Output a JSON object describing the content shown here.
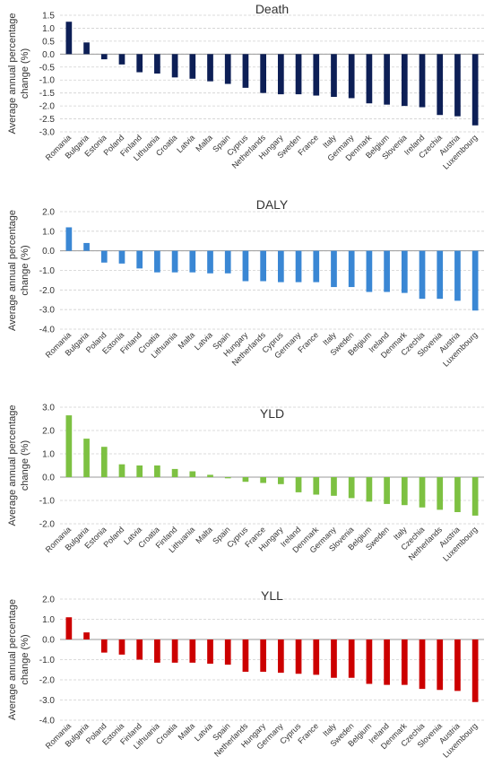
{
  "chart_data": [
    {
      "type": "bar",
      "title": "Death",
      "ylabel_lines": [
        "Average annual percentage",
        "change (%)"
      ],
      "color": "#0d1f56",
      "ylim": [
        -3.0,
        1.5
      ],
      "ticks": [
        "1.5",
        "1.0",
        "0.5",
        "0.0",
        "-0.5",
        "-1.0",
        "-1.5",
        "-2.0",
        "-2.5",
        "-3.0"
      ],
      "categories": [
        "Romania",
        "Bulgaria",
        "Estonia",
        "Poland",
        "Finland",
        "Lithuania",
        "Croatia",
        "Latvia",
        "Malta",
        "Spain",
        "Cyprus",
        "Netherlands",
        "Hungary",
        "Sweden",
        "France",
        "Italy",
        "Germany",
        "Denmark",
        "Belgium",
        "Slovenia",
        "Ireland",
        "Czechia",
        "Austria",
        "Luxembourg"
      ],
      "values": [
        1.25,
        0.45,
        -0.2,
        -0.4,
        -0.7,
        -0.75,
        -0.9,
        -0.95,
        -1.05,
        -1.15,
        -1.3,
        -1.5,
        -1.55,
        -1.55,
        -1.6,
        -1.65,
        -1.7,
        -1.9,
        -1.95,
        -2.0,
        -2.05,
        -2.35,
        -2.4,
        -2.75
      ],
      "grid": true
    },
    {
      "type": "bar",
      "title": "DALY",
      "ylabel_lines": [
        "Average annual percentage",
        "change (%)"
      ],
      "color": "#3a87d4",
      "ylim": [
        -4.0,
        2.0
      ],
      "ticks": [
        "2.0",
        "1.0",
        "0.0",
        "-1.0",
        "-2.0",
        "-3.0",
        "-4.0"
      ],
      "categories": [
        "Romania",
        "Bulgaria",
        "Poland",
        "Estonia",
        "Finland",
        "Croatia",
        "Lithuania",
        "Malta",
        "Latvia",
        "Spain",
        "Hungary",
        "Netherlands",
        "Cyprus",
        "Germany",
        "France",
        "Italy",
        "Sweden",
        "Belgium",
        "Ireland",
        "Denmark",
        "Czechia",
        "Slovenia",
        "Austria",
        "Luxembourg"
      ],
      "values": [
        1.2,
        0.4,
        -0.6,
        -0.65,
        -0.9,
        -1.1,
        -1.1,
        -1.1,
        -1.15,
        -1.15,
        -1.55,
        -1.55,
        -1.6,
        -1.6,
        -1.6,
        -1.85,
        -1.85,
        -2.1,
        -2.1,
        -2.15,
        -2.45,
        -2.45,
        -2.55,
        -3.05
      ],
      "grid": true
    },
    {
      "type": "bar",
      "title": "YLD",
      "ylabel_lines": [
        "Average annual percentage",
        "change (%)"
      ],
      "color": "#7dc142",
      "ylim": [
        -2.0,
        3.0
      ],
      "ticks": [
        "3.0",
        "2.0",
        "1.0",
        "0.0",
        "-1.0",
        "-2.0"
      ],
      "categories": [
        "Romania",
        "Bulgaria",
        "Estonia",
        "Poland",
        "Latvia",
        "Croatia",
        "Finland",
        "Lithuania",
        "Malta",
        "Spain",
        "Cyprus",
        "France",
        "Hungary",
        "Ireland",
        "Denmark",
        "Germany",
        "Slovenia",
        "Belgium",
        "Sweden",
        "Italy",
        "Czechia",
        "Netherlands",
        "Austria",
        "Luxembourg"
      ],
      "values": [
        2.65,
        1.65,
        1.3,
        0.55,
        0.5,
        0.5,
        0.35,
        0.25,
        0.1,
        -0.05,
        -0.2,
        -0.25,
        -0.3,
        -0.65,
        -0.75,
        -0.8,
        -0.9,
        -1.05,
        -1.15,
        -1.2,
        -1.3,
        -1.4,
        -1.5,
        -1.65
      ],
      "grid": true
    },
    {
      "type": "bar",
      "title": "YLL",
      "ylabel_lines": [
        "Average annual percentage",
        "change (%)"
      ],
      "color": "#cc0000",
      "ylim": [
        -4.0,
        2.0
      ],
      "ticks": [
        "2.0",
        "1.0",
        "0.0",
        "-1.0",
        "-2.0",
        "-3.0",
        "-4.0"
      ],
      "categories": [
        "Romania",
        "Bulgaria",
        "Poland",
        "Estonia",
        "Finland",
        "Lithuania",
        "Croatia",
        "Malta",
        "Latvia",
        "Spain",
        "Netherlands",
        "Hungary",
        "Germany",
        "Cyprus",
        "France",
        "Italy",
        "Sweden",
        "Belgium",
        "Ireland",
        "Denmark",
        "Czechia",
        "Slovenia",
        "Austria",
        "Luxembourg"
      ],
      "values": [
        1.1,
        0.35,
        -0.65,
        -0.75,
        -1.0,
        -1.15,
        -1.15,
        -1.15,
        -1.2,
        -1.25,
        -1.6,
        -1.6,
        -1.65,
        -1.7,
        -1.75,
        -1.9,
        -1.9,
        -2.2,
        -2.25,
        -2.25,
        -2.45,
        -2.5,
        -2.55,
        -3.1
      ],
      "grid": true
    }
  ]
}
